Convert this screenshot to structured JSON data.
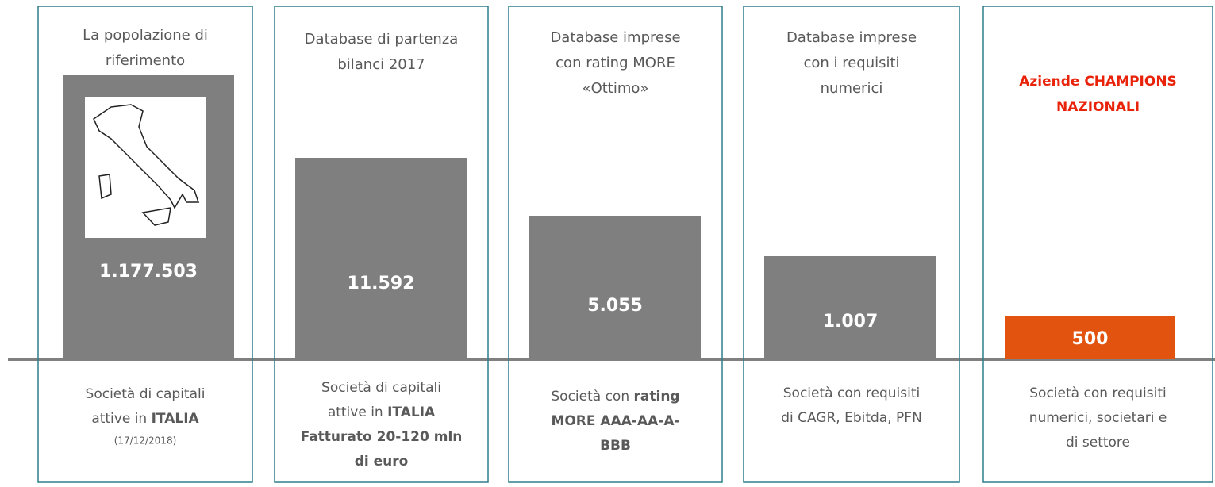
{
  "panels": [
    {
      "header": [
        "La popolazione di",
        "riferimento"
      ],
      "value": "1.177.503",
      "footer": [
        [
          {
            "text": "Società di capitali"
          }
        ],
        [
          {
            "text": "attive in "
          },
          {
            "text": "ITALIA",
            "bold": true
          }
        ]
      ],
      "note": "(17/12/2018)"
    },
    {
      "header": [
        "Database di partenza",
        "bilanci 2017"
      ],
      "value": "11.592",
      "footer": [
        [
          {
            "text": "Società di capitali"
          }
        ],
        [
          {
            "text": "attive in "
          },
          {
            "text": "ITALIA",
            "bold": true
          }
        ],
        [
          {
            "text": "Fatturato 20-120 mln",
            "bold": true
          }
        ],
        [
          {
            "text": "di euro",
            "bold": true
          }
        ]
      ]
    },
    {
      "header": [
        "Database imprese",
        "con rating MORE",
        "«Ottimo»"
      ],
      "value": "5.055",
      "footer": [
        [
          {
            "text": "Società con "
          },
          {
            "text": "rating",
            "bold": true
          }
        ],
        [
          {
            "text": "MORE AAA-AA-A-",
            "bold": true
          }
        ],
        [
          {
            "text": "BBB",
            "bold": true
          }
        ]
      ]
    },
    {
      "header": [
        "Database imprese",
        "con i requisiti",
        "numerici"
      ],
      "value": "1.007",
      "footer": [
        [
          {
            "text": "Società con requisiti"
          }
        ],
        [
          {
            "text": "di CAGR, Ebitda, PFN"
          }
        ]
      ]
    },
    {
      "header": [
        "Aziende CHAMPIONS",
        "NAZIONALI"
      ],
      "value": "500",
      "highlight": true,
      "footer": [
        [
          {
            "text": "Società con requisiti"
          }
        ],
        [
          {
            "text": "numerici, societari e"
          }
        ],
        [
          {
            "text": "di settore"
          }
        ]
      ]
    }
  ]
}
